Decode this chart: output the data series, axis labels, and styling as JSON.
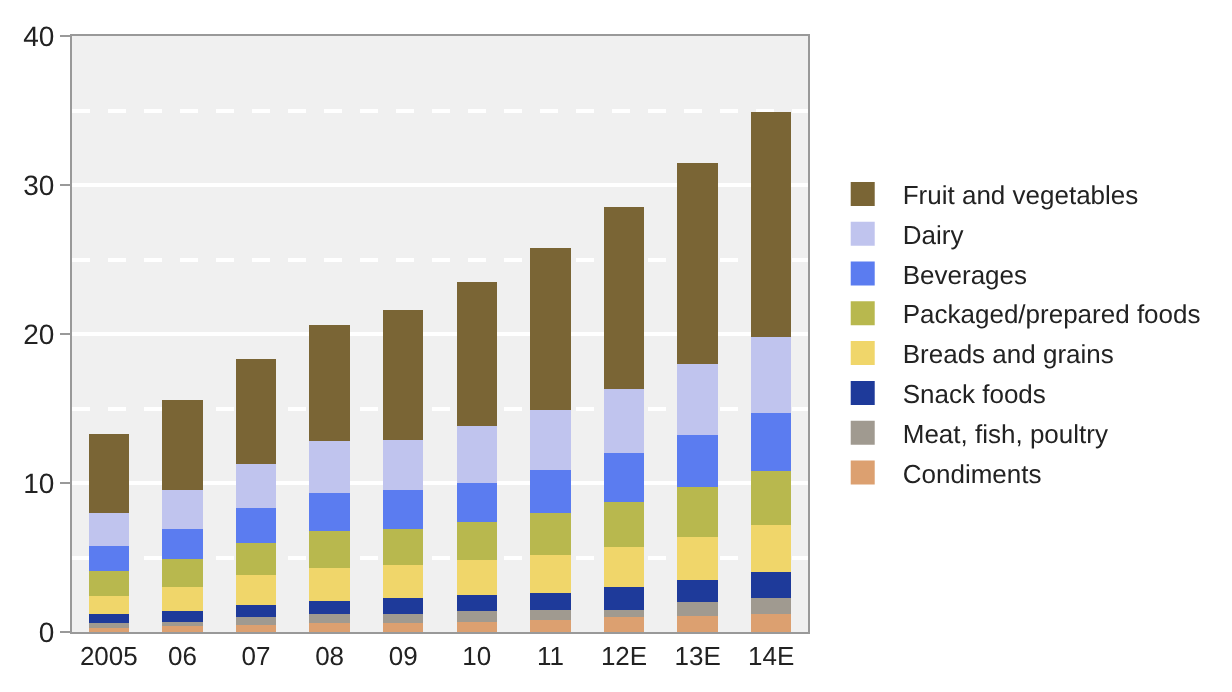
{
  "chart_data": {
    "type": "bar",
    "stacked": true,
    "categories": [
      "2005",
      "06",
      "07",
      "08",
      "09",
      "10",
      "11",
      "12E",
      "13E",
      "14E"
    ],
    "series": [
      {
        "name": "Condiments",
        "color": "#dca070",
        "values": [
          0.4,
          0.4,
          0.5,
          0.6,
          0.6,
          0.7,
          0.8,
          1.0,
          1.1,
          1.2
        ]
      },
      {
        "name": "Meat, fish, poultry",
        "color": "#a09a90",
        "values": [
          0.2,
          0.3,
          0.5,
          0.6,
          0.6,
          0.7,
          0.7,
          0.5,
          0.9,
          1.1
        ]
      },
      {
        "name": "Snack foods",
        "color": "#1e3a9a",
        "values": [
          0.6,
          0.7,
          0.8,
          0.9,
          1.1,
          1.1,
          1.1,
          1.5,
          1.5,
          1.7
        ]
      },
      {
        "name": "Breads and grains",
        "color": "#f0d66a",
        "values": [
          1.2,
          1.6,
          2.0,
          2.2,
          2.2,
          2.3,
          2.6,
          2.7,
          2.9,
          3.2
        ]
      },
      {
        "name": "Packaged/prepared foods",
        "color": "#b8b84e",
        "values": [
          1.7,
          1.9,
          2.2,
          2.5,
          2.4,
          2.6,
          2.8,
          3.0,
          3.3,
          3.6
        ]
      },
      {
        "name": "Beverages",
        "color": "#5b7cf0",
        "values": [
          1.7,
          2.0,
          2.3,
          2.5,
          2.6,
          2.6,
          2.9,
          3.3,
          3.5,
          3.9
        ]
      },
      {
        "name": "Dairy",
        "color": "#c0c4ee",
        "values": [
          2.2,
          2.6,
          3.0,
          3.5,
          3.4,
          3.8,
          4.0,
          4.3,
          4.8,
          5.1
        ]
      },
      {
        "name": "Fruit and vegetables",
        "color": "#7a6535",
        "values": [
          5.3,
          6.1,
          7.0,
          7.8,
          8.7,
          9.7,
          10.9,
          12.2,
          13.5,
          15.1
        ]
      }
    ],
    "ylim": [
      0,
      40
    ],
    "yticks": [
      0,
      10,
      20,
      30,
      40
    ],
    "grid": "y",
    "legend": "right"
  }
}
